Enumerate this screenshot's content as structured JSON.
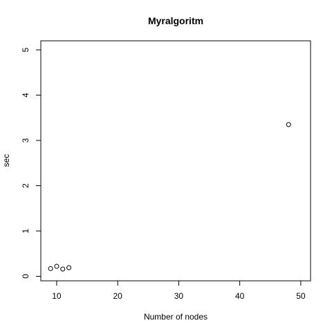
{
  "chart_data": {
    "type": "scatter",
    "title": "Myralgoritm",
    "xlabel": "Number of nodes",
    "ylabel": "sec",
    "xlim": [
      7.4,
      51.6
    ],
    "ylim": [
      -0.1,
      5.2
    ],
    "xticks": [
      10,
      20,
      30,
      40,
      50
    ],
    "yticks": [
      0,
      1,
      2,
      3,
      4,
      5
    ],
    "grid": false,
    "marker": "open-circle",
    "points": [
      {
        "x": 9,
        "y": 0.17
      },
      {
        "x": 10,
        "y": 0.22
      },
      {
        "x": 11,
        "y": 0.16
      },
      {
        "x": 12,
        "y": 0.19
      },
      {
        "x": 48,
        "y": 3.35
      }
    ]
  }
}
